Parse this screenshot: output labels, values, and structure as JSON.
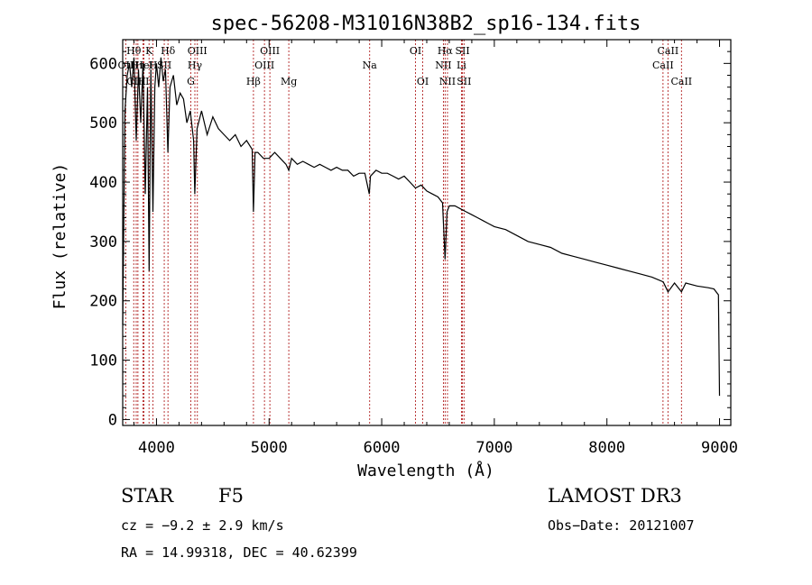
{
  "chart_data": {
    "type": "line",
    "title": "spec-56208-M31016N38B2_sp16-134.fits",
    "xlabel": "Wavelength (Å)",
    "ylabel": "Flux (relative)",
    "xlim": [
      3700,
      9100
    ],
    "ylim": [
      -10,
      640
    ],
    "x_ticks": [
      4000,
      5000,
      6000,
      7000,
      8000,
      9000
    ],
    "y_ticks": [
      0,
      100,
      200,
      300,
      400,
      500,
      600
    ],
    "grid": false,
    "series": [
      {
        "name": "spectrum",
        "x": [
          3700,
          3720,
          3740,
          3760,
          3780,
          3800,
          3820,
          3840,
          3860,
          3880,
          3900,
          3920,
          3935,
          3950,
          3968,
          3985,
          4000,
          4020,
          4040,
          4060,
          4080,
          4101,
          4120,
          4150,
          4180,
          4210,
          4240,
          4270,
          4300,
          4330,
          4340,
          4360,
          4400,
          4450,
          4500,
          4550,
          4600,
          4650,
          4700,
          4750,
          4800,
          4850,
          4861,
          4875,
          4900,
          4950,
          5000,
          5050,
          5100,
          5150,
          5175,
          5200,
          5250,
          5300,
          5350,
          5400,
          5450,
          5500,
          5550,
          5600,
          5650,
          5700,
          5750,
          5800,
          5850,
          5890,
          5900,
          5950,
          6000,
          6050,
          6100,
          6150,
          6200,
          6250,
          6300,
          6350,
          6400,
          6450,
          6500,
          6540,
          6563,
          6580,
          6600,
          6650,
          6700,
          6750,
          6800,
          6850,
          6900,
          6950,
          7000,
          7100,
          7200,
          7300,
          7400,
          7500,
          7600,
          7700,
          7800,
          7900,
          8000,
          8100,
          8200,
          8300,
          8400,
          8500,
          8542,
          8600,
          8662,
          8700,
          8800,
          8900,
          8950,
          8990,
          9000
        ],
        "y": [
          160,
          520,
          580,
          600,
          560,
          610,
          470,
          590,
          500,
          600,
          380,
          560,
          250,
          590,
          350,
          560,
          600,
          560,
          610,
          570,
          590,
          450,
          560,
          580,
          530,
          550,
          540,
          500,
          520,
          470,
          380,
          490,
          520,
          480,
          510,
          490,
          480,
          470,
          480,
          460,
          470,
          455,
          350,
          450,
          450,
          440,
          440,
          450,
          440,
          430,
          420,
          440,
          430,
          435,
          430,
          425,
          430,
          425,
          420,
          425,
          420,
          420,
          410,
          415,
          415,
          380,
          410,
          420,
          415,
          415,
          410,
          405,
          410,
          400,
          390,
          395,
          385,
          380,
          375,
          365,
          270,
          350,
          360,
          360,
          355,
          350,
          345,
          340,
          335,
          330,
          325,
          320,
          310,
          300,
          295,
          290,
          280,
          275,
          270,
          265,
          260,
          255,
          250,
          245,
          240,
          232,
          215,
          230,
          215,
          230,
          225,
          222,
          220,
          210,
          40
        ]
      }
    ],
    "line_markers": [
      {
        "name": "Hθ",
        "x": 3798,
        "row": 0
      },
      {
        "name": "CIII",
        "x": 3820,
        "row": 2
      },
      {
        "name": "OII",
        "x": 3727,
        "row": 1
      },
      {
        "name": "Hη",
        "x": 3835,
        "row": 1
      },
      {
        "name": "HeI",
        "x": 3889,
        "row": 1
      },
      {
        "name": "HI",
        "x": 3880,
        "row": 2
      },
      {
        "name": "K",
        "x": 3934,
        "row": 0
      },
      {
        "name": "H",
        "x": 3969,
        "row": 1
      },
      {
        "name": "Hδ",
        "x": 4102,
        "row": 0
      },
      {
        "name": "SII",
        "x": 4069,
        "row": 1
      },
      {
        "name": "OIII",
        "x": 4363,
        "row": 0
      },
      {
        "name": "Hγ",
        "x": 4341,
        "row": 1
      },
      {
        "name": "G",
        "x": 4305,
        "row": 2
      },
      {
        "name": "Hβ",
        "x": 4861,
        "row": 2
      },
      {
        "name": "OIII",
        "x": 5007,
        "row": 0
      },
      {
        "name": "OIII",
        "x": 4959,
        "row": 1
      },
      {
        "name": "Mg",
        "x": 5175,
        "row": 2
      },
      {
        "name": "Na",
        "x": 5893,
        "row": 1
      },
      {
        "name": "OI",
        "x": 6300,
        "row": 0
      },
      {
        "name": "OI",
        "x": 6364,
        "row": 2
      },
      {
        "name": "Hα",
        "x": 6563,
        "row": 0
      },
      {
        "name": "NII",
        "x": 6548,
        "row": 1
      },
      {
        "name": "NII",
        "x": 6584,
        "row": 2
      },
      {
        "name": "SII",
        "x": 6717,
        "row": 0
      },
      {
        "name": "Li",
        "x": 6708,
        "row": 1
      },
      {
        "name": "SII",
        "x": 6731,
        "row": 2
      },
      {
        "name": "CaII",
        "x": 8542,
        "row": 0
      },
      {
        "name": "CaII",
        "x": 8498,
        "row": 1
      },
      {
        "name": "CaII",
        "x": 8662,
        "row": 2
      }
    ]
  },
  "info": {
    "object_class": "STAR",
    "subclass": "F5",
    "survey": "LAMOST DR3",
    "cz": "cz = −9.2 ± 2.9 km/s",
    "obs_date": "Obs−Date: 20121007",
    "coords": "RA =  14.99318, DEC =  40.62399"
  }
}
